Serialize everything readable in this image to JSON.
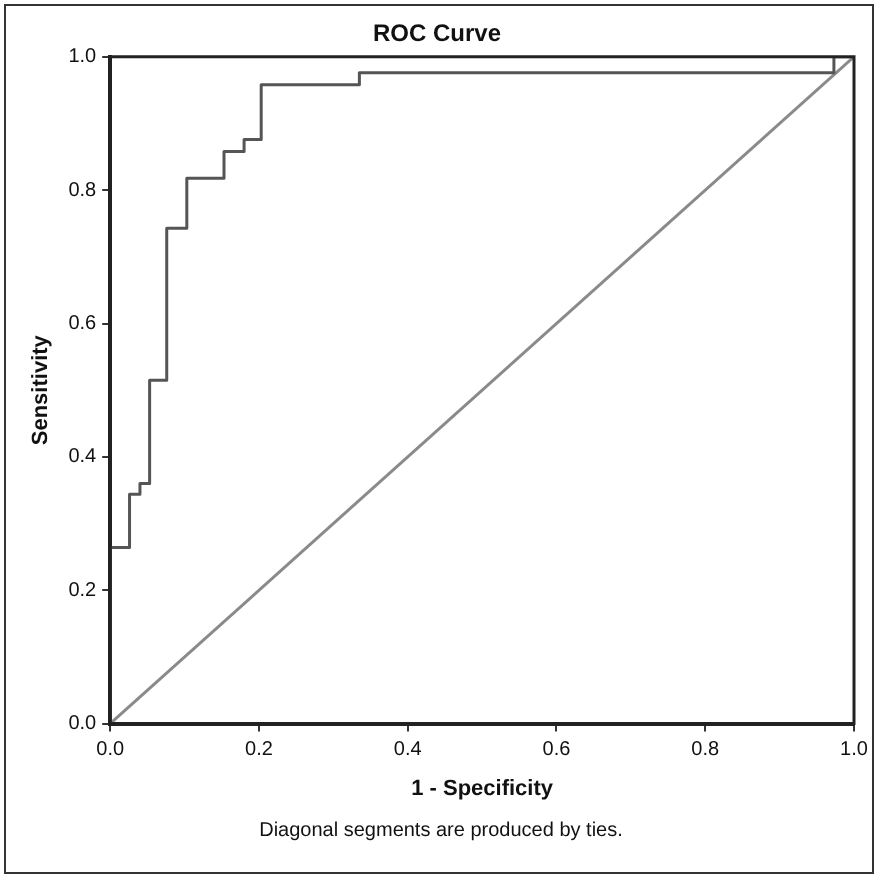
{
  "chart_data": {
    "type": "step",
    "title": "ROC Curve",
    "xlabel": "1 - Specificity",
    "ylabel": "Sensitivity",
    "annotations": [
      "Diagonal segments are produced by ties."
    ],
    "series": [
      {
        "color": "#555555",
        "x": [
          0,
          0.026,
          0.04,
          0.053,
          0.076,
          0.103,
          0.153,
          0.18,
          0.203,
          0.335,
          0.973,
          1.0
        ],
        "values": [
          0,
          0.264,
          0.344,
          0.36,
          0.515,
          0.743,
          0.818,
          0.858,
          0.876,
          0.958,
          0.976,
          1.0
        ]
      },
      {
        "type": "line",
        "color": "#8a8a8a",
        "x": [
          0,
          1
        ],
        "values": [
          0,
          1
        ]
      }
    ],
    "xlim": [
      0,
      1
    ],
    "ylim": [
      0,
      1
    ],
    "xticks": [
      {
        "value": 0,
        "label": "0.0"
      },
      0.2,
      0.4,
      0.6,
      0.8,
      {
        "value": 1,
        "label": "1.0"
      }
    ],
    "yticks": [
      {
        "value": 0,
        "label": "0.0"
      },
      0.2,
      0.4,
      0.6,
      0.8,
      {
        "value": 1,
        "label": "1.0"
      }
    ],
    "grid": false,
    "legend": false,
    "marker": "none",
    "line_style": "solid"
  }
}
